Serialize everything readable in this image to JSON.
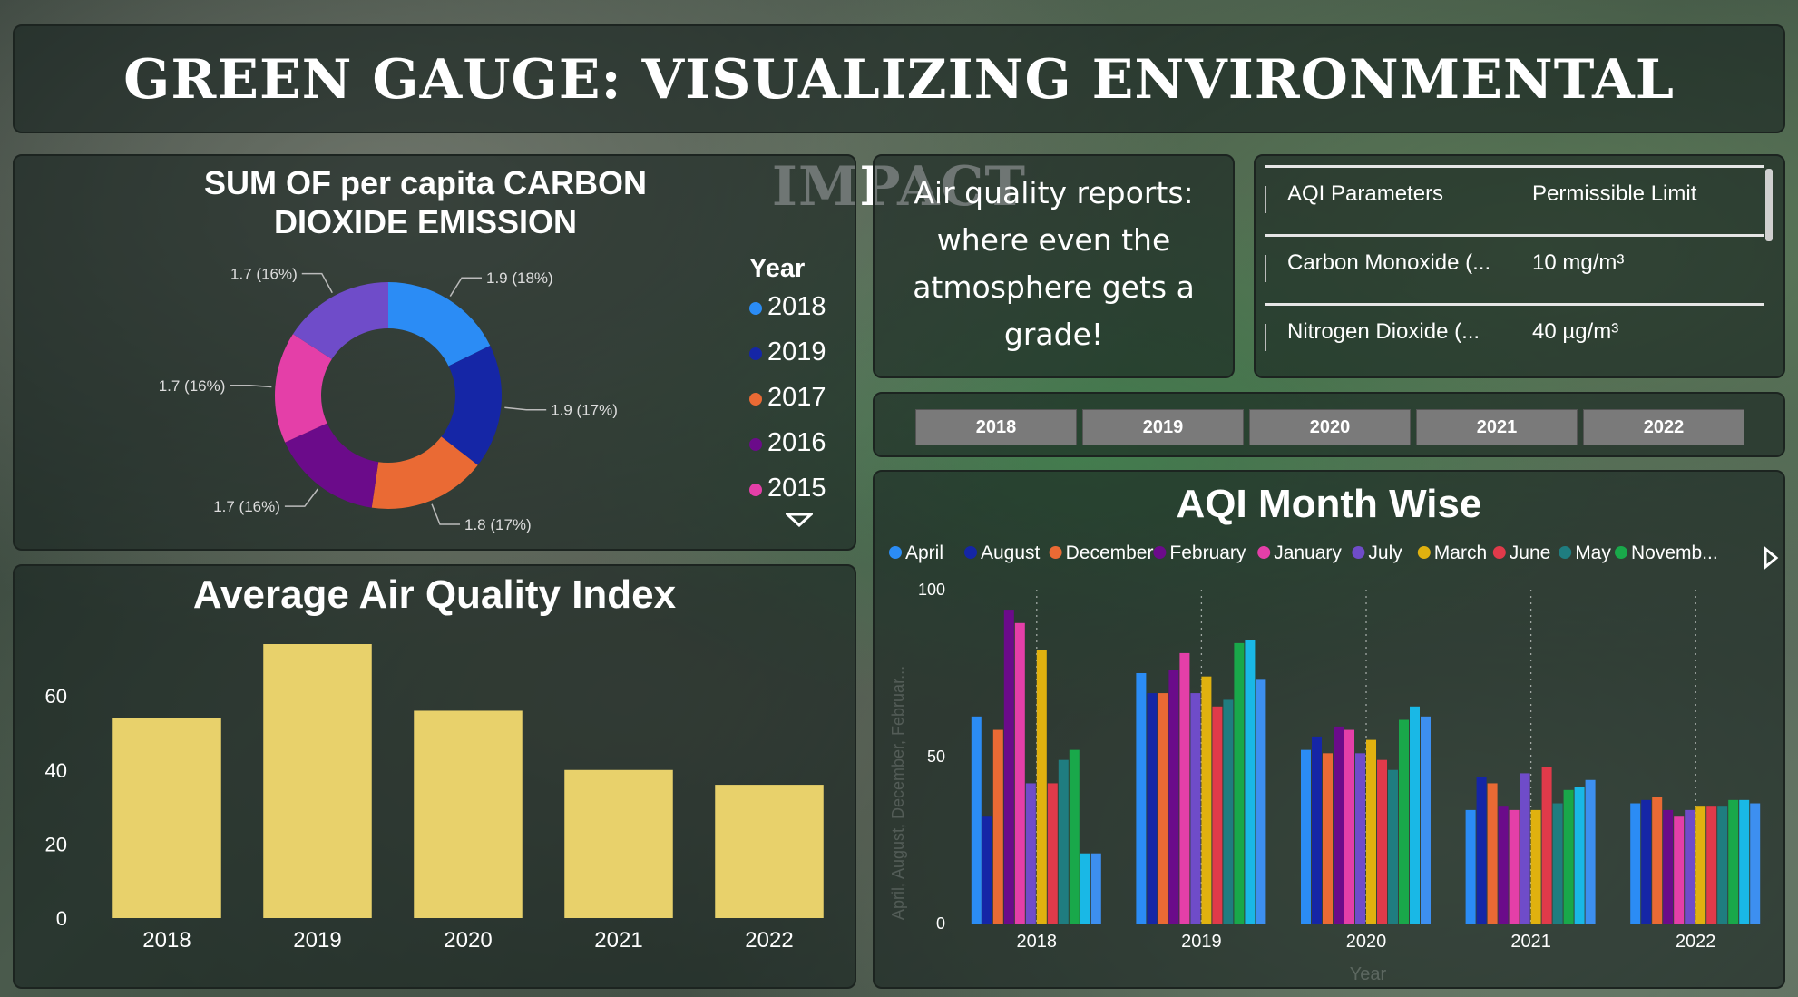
{
  "header": {
    "title": "GREEN GAUGE: VISUALIZING ENVIRONMENTAL IMPACT"
  },
  "quote": {
    "text": "Air quality reports: where even the atmosphere gets a grade!"
  },
  "aqi_table": {
    "headers": [
      "AQI Parameters",
      "Permissible Limit"
    ],
    "rows": [
      [
        "Carbon Monoxide (...",
        "10 mg/m³"
      ],
      [
        "Nitrogen Dioxide (...",
        "40 µg/m³"
      ]
    ]
  },
  "year_slicer": {
    "options": [
      "2018",
      "2019",
      "2020",
      "2021",
      "2022"
    ]
  },
  "colors": {
    "bar_fill": "#e8d16b",
    "panel_bg": "#16221e"
  },
  "chart_data": [
    {
      "type": "pie",
      "variant": "donut",
      "title": "SUM OF per capita CARBON DIOXIDE EMISSION",
      "legend_title": "Year",
      "legend_position": "right",
      "slices": [
        {
          "label": "2018",
          "value": 1.9,
          "data_label": "1.9 (18%)",
          "color": "#2b8cf5"
        },
        {
          "label": "2019",
          "value": 1.9,
          "data_label": "1.9 (17%)",
          "color": "#1526a6"
        },
        {
          "label": "2017",
          "value": 1.8,
          "data_label": "1.8 (17%)",
          "color": "#ea6a34"
        },
        {
          "label": "2016",
          "value": 1.7,
          "data_label": "1.7 (16%)",
          "color": "#6b0b8a"
        },
        {
          "label": "2015",
          "value": 1.7,
          "data_label": "1.7 (16%)",
          "color": "#e43fa8"
        },
        {
          "label": "",
          "value": 1.7,
          "data_label": "1.7 (16%)",
          "color": "#6f4cc9"
        }
      ]
    },
    {
      "type": "bar",
      "title": "Average Air Quality Index",
      "categories": [
        "2018",
        "2019",
        "2020",
        "2021",
        "2022"
      ],
      "values": [
        54,
        74,
        56,
        40,
        36
      ],
      "ylim": [
        0,
        80
      ],
      "yticks": [
        0,
        20,
        40,
        60
      ],
      "grid": false
    },
    {
      "type": "bar",
      "title": "AQI Month Wise",
      "xlabel": "Year",
      "ylabel": "April, August, December, Februar...",
      "legend_position": "top",
      "ylim": [
        0,
        100
      ],
      "yticks": [
        0,
        50,
        100
      ],
      "categories": [
        "2018",
        "2019",
        "2020",
        "2021",
        "2022"
      ],
      "series": [
        {
          "name": "April",
          "color": "#2b8cf5",
          "values": [
            62,
            75,
            52,
            34,
            36
          ]
        },
        {
          "name": "August",
          "color": "#1526a6",
          "values": [
            32,
            69,
            56,
            44,
            37
          ]
        },
        {
          "name": "December",
          "color": "#ea6a34",
          "values": [
            58,
            69,
            51,
            42,
            38
          ]
        },
        {
          "name": "February",
          "color": "#6b0b8a",
          "values": [
            94,
            76,
            59,
            35,
            34
          ]
        },
        {
          "name": "January",
          "color": "#e43fa8",
          "values": [
            90,
            81,
            58,
            34,
            32
          ]
        },
        {
          "name": "July",
          "color": "#6f4cc9",
          "values": [
            42,
            69,
            51,
            45,
            34
          ]
        },
        {
          "name": "March",
          "color": "#e0b10f",
          "values": [
            82,
            74,
            55,
            34,
            35
          ]
        },
        {
          "name": "June",
          "color": "#e03a4a",
          "values": [
            42,
            65,
            49,
            47,
            35
          ]
        },
        {
          "name": "May",
          "color": "#1f7d80",
          "values": [
            49,
            67,
            46,
            36,
            35
          ]
        },
        {
          "name": "Novemb...",
          "color": "#19a84a",
          "values": [
            52,
            84,
            61,
            40,
            37
          ]
        },
        {
          "name": "",
          "color": "#19b8e6",
          "values": [
            21,
            85,
            65,
            41,
            37
          ]
        },
        {
          "name": "",
          "color": "#3d8ff0",
          "values": [
            21,
            73,
            62,
            43,
            36
          ]
        }
      ]
    }
  ]
}
